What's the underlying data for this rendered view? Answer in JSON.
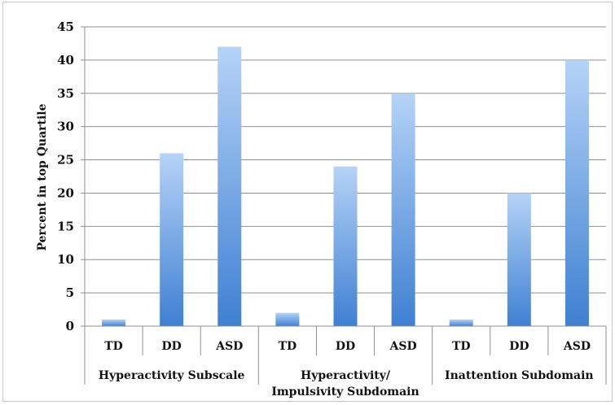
{
  "chart_data": {
    "type": "bar",
    "title": "",
    "xlabel": "",
    "ylabel": "Percent in top Quartile",
    "ylim": [
      0,
      45
    ],
    "yticks": [
      0,
      5,
      10,
      15,
      20,
      25,
      30,
      35,
      40,
      45
    ],
    "grid": true,
    "legend": "none",
    "categories": [
      "TD",
      "DD",
      "ASD",
      "TD",
      "DD",
      "ASD",
      "TD",
      "DD",
      "ASD"
    ],
    "groups": [
      {
        "label_lines": [
          "Hyperactivity Subscale"
        ],
        "categories": [
          "TD",
          "DD",
          "ASD"
        ]
      },
      {
        "label_lines": [
          "Hyperactivity/",
          "Impulsivity Subdomain"
        ],
        "categories": [
          "TD",
          "DD",
          "ASD"
        ]
      },
      {
        "label_lines": [
          "Inattention Subdomain"
        ],
        "categories": [
          "TD",
          "DD",
          "ASD"
        ]
      }
    ],
    "values": [
      1,
      26,
      42,
      2,
      24,
      35,
      1,
      20,
      40
    ],
    "colors": {
      "bar_top": "#b5d3f7",
      "bar_bottom": "#3f80d2",
      "grid": "#8f8f8f",
      "axis": "#8f8f8f"
    }
  }
}
